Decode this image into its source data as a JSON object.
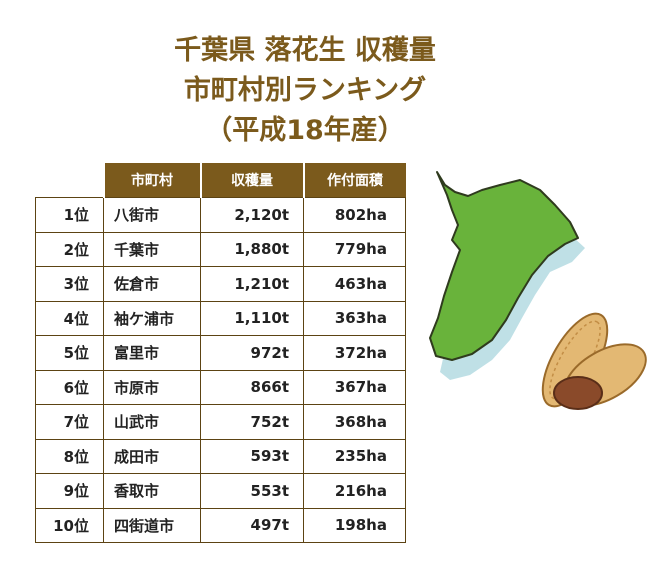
{
  "title": {
    "line1": "千葉県 落花生 収穫量",
    "line2": "市町村別ランキング",
    "line3": "（平成18年産）"
  },
  "table": {
    "header": [
      "市町村",
      "収穫量",
      "作付面積"
    ],
    "rows": [
      [
        "1位",
        "八街市",
        "2,120t",
        "802ha"
      ],
      [
        "2位",
        "千葉市",
        "1,880t",
        "779ha"
      ],
      [
        "3位",
        "佐倉市",
        "1,210t",
        "463ha"
      ],
      [
        "4位",
        "袖ケ浦市",
        "1,110t",
        "363ha"
      ],
      [
        "5位",
        "富里市",
        "972t",
        "372ha"
      ],
      [
        "6位",
        "市原市",
        "866t",
        "367ha"
      ],
      [
        "7位",
        "山武市",
        "752t",
        "368ha"
      ],
      [
        "8位",
        "成田市",
        "593t",
        "235ha"
      ],
      [
        "9位",
        "香取市",
        "553t",
        "216ha"
      ],
      [
        "10位",
        "四街道市",
        "497t",
        "198ha"
      ]
    ]
  }
}
